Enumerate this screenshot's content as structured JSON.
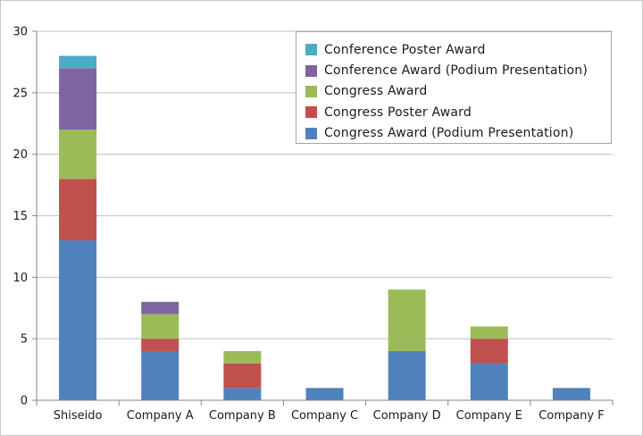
{
  "chart_data": {
    "type": "bar",
    "stacked": true,
    "categories": [
      "Shiseido",
      "Company A",
      "Company B",
      "Company C",
      "Company D",
      "Company E",
      "Company F"
    ],
    "series": [
      {
        "name": "Congress Award (Podium Presentation)",
        "color": "#4f81bd",
        "values": [
          13,
          4,
          1,
          1,
          4,
          3,
          1
        ]
      },
      {
        "name": "Congress Poster Award",
        "color": "#c0504d",
        "values": [
          5,
          1,
          2,
          0,
          0,
          2,
          0
        ]
      },
      {
        "name": "Congress Award",
        "color": "#9bbb59",
        "values": [
          4,
          2,
          1,
          0,
          5,
          1,
          0
        ]
      },
      {
        "name": "Conference Award (Podium Presentation)",
        "color": "#8064a2",
        "values": [
          5,
          1,
          0,
          0,
          0,
          0,
          0
        ]
      },
      {
        "name": "Conference Poster Award",
        "color": "#4bacc6",
        "values": [
          1,
          0,
          0,
          0,
          0,
          0,
          0
        ]
      }
    ],
    "legend_order": [
      4,
      3,
      2,
      1,
      0
    ],
    "ylim": [
      0,
      30
    ],
    "yticks": [
      "0",
      "5",
      "10",
      "15",
      "20",
      "25",
      "30"
    ],
    "grid": true,
    "legend_position": "top-right",
    "title": "",
    "xlabel": "",
    "ylabel": ""
  }
}
